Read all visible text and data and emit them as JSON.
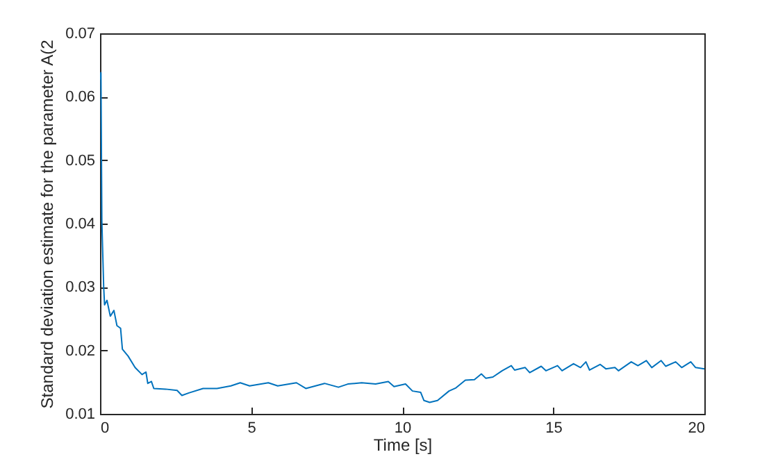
{
  "chart_data": {
    "type": "line",
    "xlabel": "Time [s]",
    "ylabel": "Standard deviation estimate for the parameter A(2",
    "xlim": [
      0,
      20
    ],
    "ylim": [
      0.01,
      0.07
    ],
    "xticks": [
      0,
      5,
      10,
      15,
      20
    ],
    "yticks": [
      0.01,
      0.02,
      0.03,
      0.04,
      0.05,
      0.06,
      0.07
    ],
    "grid": false,
    "legend": false,
    "marker": "none",
    "line_style": "solid",
    "series": [
      {
        "color": "#0072bd",
        "x": [
          0,
          0.03,
          0.06,
          0.12,
          0.15,
          0.23,
          0.34,
          0.46,
          0.56,
          0.68,
          0.74,
          0.93,
          1.16,
          1.39,
          1.52,
          1.58,
          1.7,
          1.78,
          2.17,
          2.55,
          2.71,
          2.94,
          3.41,
          3.87,
          4.33,
          4.64,
          4.95,
          5.57,
          5.88,
          6.5,
          6.81,
          7.43,
          7.89,
          8.2,
          8.66,
          9.12,
          9.54,
          9.73,
          10.11,
          10.34,
          10.61,
          10.72,
          10.91,
          11.17,
          11.55,
          11.78,
          12.09,
          12.39,
          12.62,
          12.77,
          13.0,
          13.31,
          13.61,
          13.72,
          14.07,
          14.22,
          14.6,
          14.76,
          15.14,
          15.29,
          15.67,
          15.9,
          16.08,
          16.2,
          16.55,
          16.74,
          17.04,
          17.16,
          17.58,
          17.8,
          18.08,
          18.26,
          18.57,
          18.72,
          19.05,
          19.25,
          19.55,
          19.71,
          20.0
        ],
        "values": [
          0.0627,
          0.0638,
          0.0404,
          0.0301,
          0.0272,
          0.0279,
          0.0254,
          0.0263,
          0.0239,
          0.0235,
          0.0202,
          0.0191,
          0.0173,
          0.0162,
          0.0166,
          0.0148,
          0.0151,
          0.014,
          0.0139,
          0.0137,
          0.0129,
          0.0133,
          0.014,
          0.014,
          0.0144,
          0.0149,
          0.0144,
          0.0149,
          0.0144,
          0.0149,
          0.014,
          0.0148,
          0.0142,
          0.0147,
          0.0149,
          0.0147,
          0.0151,
          0.0143,
          0.0147,
          0.0136,
          0.0134,
          0.0121,
          0.0118,
          0.0121,
          0.0136,
          0.0141,
          0.0153,
          0.0154,
          0.0163,
          0.0156,
          0.0158,
          0.0168,
          0.0176,
          0.0169,
          0.0173,
          0.0165,
          0.0175,
          0.0168,
          0.0176,
          0.0168,
          0.0179,
          0.0173,
          0.0182,
          0.0169,
          0.0178,
          0.0171,
          0.0173,
          0.0168,
          0.0182,
          0.0176,
          0.0184,
          0.0173,
          0.0184,
          0.0175,
          0.0182,
          0.0173,
          0.0182,
          0.0173,
          0.0171
        ]
      }
    ]
  }
}
